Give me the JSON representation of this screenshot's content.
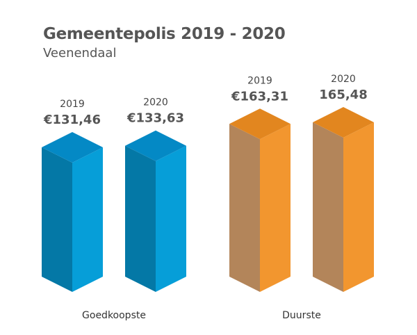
{
  "title": "Gemeentepolis 2019 - 2020",
  "subtitle": "Veenendaal",
  "colors": {
    "blue_front": "#069ED8",
    "blue_side": "#0478A6",
    "blue_top": "#0489C5",
    "orange_front": "#F2962F",
    "orange_side": "#B3855A",
    "orange_top": "#E2861F"
  },
  "chart_data": {
    "type": "bar",
    "title": "Gemeentepolis 2019 - 2020",
    "subtitle": "Veenendaal",
    "categories": [
      "Goedkoopste",
      "Duurste"
    ],
    "bars": [
      {
        "group": "Goedkoopste",
        "year": "2019",
        "label": "€131,46",
        "value": 131.46
      },
      {
        "group": "Goedkoopste",
        "year": "2020",
        "label": "€133,63",
        "value": 133.63
      },
      {
        "group": "Duurste",
        "year": "2019",
        "label": "€163,31",
        "value": 163.31
      },
      {
        "group": "Duurste",
        "year": "2020",
        "label": "165,48",
        "value": 165.48
      }
    ],
    "ylim": [
      0,
      170
    ],
    "grid": false,
    "legend": "none"
  }
}
